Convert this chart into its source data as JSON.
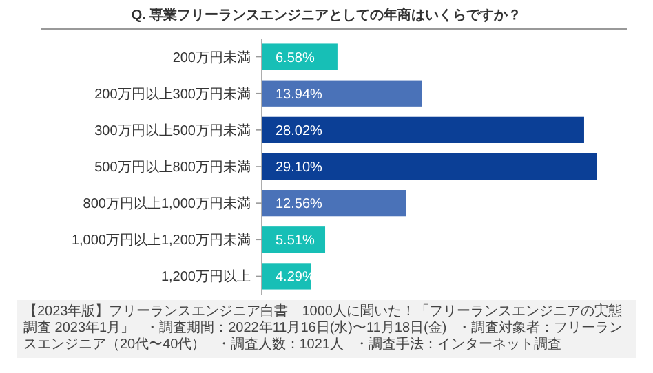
{
  "chart_data": {
    "type": "bar",
    "orientation": "horizontal",
    "title": "Q. 専業フリーランスエンジニアとしての年商はいくらですか？",
    "categories": [
      "200万円未満",
      "200万円以上300万円未満",
      "300万円以上500万円未満",
      "500万円以上800万円未満",
      "800万円以上1,000万円未満",
      "1,000万円以上1,200万円未満",
      "1,200万円以上"
    ],
    "values": [
      6.58,
      13.94,
      28.02,
      29.1,
      12.56,
      5.51,
      4.29
    ],
    "value_labels": [
      "6.58%",
      "13.94%",
      "28.02%",
      "29.10%",
      "12.56%",
      "5.51%",
      "4.29%"
    ],
    "colors": [
      "#17bfb6",
      "#4a72b8",
      "#0b3f96",
      "#0b3f96",
      "#4a72b8",
      "#17bfb6",
      "#17bfb6"
    ],
    "annotations": [
      "【2023年版】フリーランスエンジニア白書　1000人に聞いた！「フリーランスエンジニアの実態調査 2023年1月」",
      "・調査期間：2022年11月16日(水)〜11月18日(金)",
      "・調査対象者：フリーランスエンジニア（20代〜40代）",
      "・調査人数：1021人",
      "・調査手法：インターネット調査"
    ]
  }
}
